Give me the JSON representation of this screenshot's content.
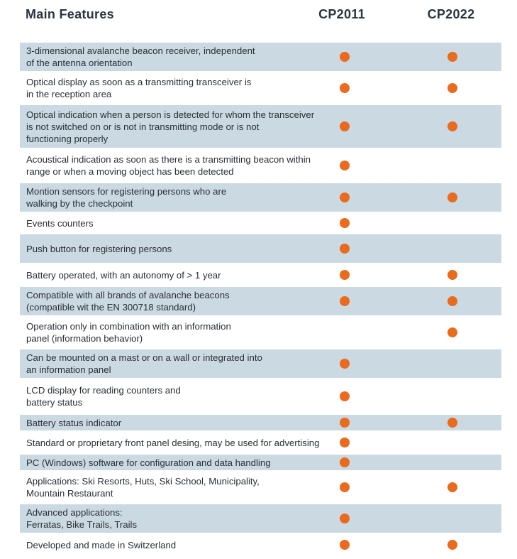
{
  "header": {
    "main": "Main Features",
    "col1": "CP2011",
    "col2": "CP2022"
  },
  "colors": {
    "shade": "#cbd9e3",
    "dot": "#ea6a1e"
  },
  "rows": [
    {
      "text": "3-dimensional avalanche beacon receiver, independent\nof the antenna orientation",
      "cp2011": true,
      "cp2022": true,
      "shaded": true
    },
    {
      "text": "Optical display as soon as a transmitting transceiver is\nin the reception area",
      "cp2011": true,
      "cp2022": true,
      "shaded": false
    },
    {
      "text": "Optical indication when a person is detected for whom the transceiver\nis not switched on or is not in transmitting mode or is not\nfunctioning properly",
      "cp2011": true,
      "cp2022": true,
      "shaded": true
    },
    {
      "text": "Acoustical indication as soon as there is a transmitting beacon within\nrange or when a moving object has been detected",
      "cp2011": true,
      "cp2022": false,
      "shaded": false
    },
    {
      "text": "Montion sensors for registering persons who are\nwalking by the checkpoint",
      "cp2011": true,
      "cp2022": true,
      "shaded": true
    },
    {
      "text": "Events counters",
      "cp2011": true,
      "cp2022": false,
      "shaded": false
    },
    {
      "text": "Push button for registering persons",
      "cp2011": true,
      "cp2022": false,
      "shaded": true
    },
    {
      "text": "Battery operated, with an autonomy of > 1 year",
      "cp2011": true,
      "cp2022": true,
      "shaded": false
    },
    {
      "text": "Compatible with all brands of avalanche beacons\n(compatible wit the EN 300718 standard)",
      "cp2011": true,
      "cp2022": true,
      "shaded": true
    },
    {
      "text": "Operation only in combination with an information\npanel (information behavior)",
      "cp2011": false,
      "cp2022": true,
      "shaded": false
    },
    {
      "text": "Can be mounted on a mast or on a wall or integrated into\nan information panel",
      "cp2011": true,
      "cp2022": false,
      "shaded": true
    },
    {
      "text": "LCD display for reading counters and\nbattery status",
      "cp2011": true,
      "cp2022": false,
      "shaded": false
    },
    {
      "text": "Battery status indicator",
      "cp2011": true,
      "cp2022": true,
      "shaded": true
    },
    {
      "text": "Standard or proprietary front panel desing, may be used for advertising",
      "cp2011": true,
      "cp2022": false,
      "shaded": false
    },
    {
      "text": "PC (Windows) software for configuration and data handling",
      "cp2011": true,
      "cp2022": false,
      "shaded": true
    },
    {
      "text": "Applications: Ski Resorts, Huts, Ski School, Municipality,\nMountain Restaurant",
      "cp2011": true,
      "cp2022": true,
      "shaded": false
    },
    {
      "text": "Advanced applications:\nFerratas, Bike Trails, Trails",
      "cp2011": true,
      "cp2022": false,
      "shaded": true
    },
    {
      "text": "Developed and made in Switzerland",
      "cp2011": true,
      "cp2022": true,
      "shaded": false
    }
  ]
}
